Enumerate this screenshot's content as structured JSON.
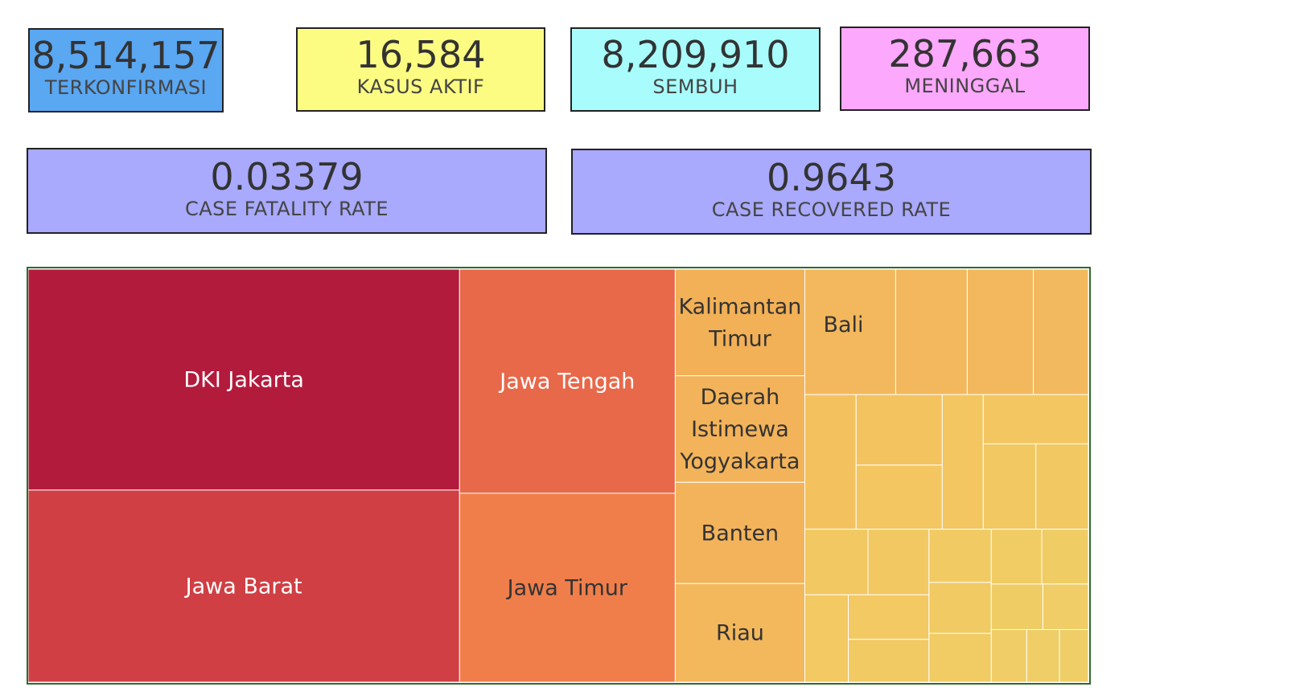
{
  "cards": {
    "terkonfirmasi": {
      "value": "8,514,157",
      "label": "TERKONFIRMASI",
      "color": "#5aa7f2"
    },
    "kasus_aktif": {
      "value": "16,584",
      "label": "KASUS AKTIF",
      "color": "#fcfc82"
    },
    "sembuh": {
      "value": "8,209,910",
      "label": "SEMBUH",
      "color": "#a8fcfc"
    },
    "meninggal": {
      "value": "287,663",
      "label": "MENINGGAL",
      "color": "#fca8fc"
    }
  },
  "rates": {
    "cfr": {
      "value": "0.03379",
      "label": "CASE FATALITY RATE",
      "color": "#a9a9fd"
    },
    "crr": {
      "value": "0.9643",
      "label": "CASE RECOVERED RATE",
      "color": "#a9a9fd"
    }
  },
  "chart_data": {
    "type": "treemap",
    "color_scale": "sequential yellow-orange-red",
    "nodes": [
      {
        "name": "DKI Jakarta",
        "value": 1380,
        "color": "#b31b3c"
      },
      {
        "name": "Jawa Barat",
        "value": 1200,
        "color": "#cf3f43"
      },
      {
        "name": "Jawa Tengah",
        "value": 700,
        "color": "#e8684a"
      },
      {
        "name": "Jawa Timur",
        "value": 590,
        "color": "#ef7e4b"
      },
      {
        "name": "Kalimantan Timur",
        "value": 200,
        "color": "#f2b057"
      },
      {
        "name": "Daerah Istimewa Yogyakarta",
        "value": 200,
        "color": "#f3b35a"
      },
      {
        "name": "Banten",
        "value": 190,
        "color": "#f3b35a"
      },
      {
        "name": "Riau",
        "value": 185,
        "color": "#f3b75c"
      },
      {
        "name": "Bali",
        "value": 165,
        "color": "#f3b85d"
      },
      {
        "name": "",
        "value": 130,
        "color": "#f3b85d"
      },
      {
        "name": "",
        "value": 120,
        "color": "#f3b85d"
      },
      {
        "name": "",
        "value": 100,
        "color": "#f3b95e"
      },
      {
        "name": "",
        "value": 100,
        "color": "#f3c25f"
      },
      {
        "name": "",
        "value": 88,
        "color": "#f3c360"
      },
      {
        "name": "",
        "value": 80,
        "color": "#f3c661"
      },
      {
        "name": "",
        "value": 80,
        "color": "#f3c661"
      },
      {
        "name": "",
        "value": 75,
        "color": "#f3c661"
      },
      {
        "name": "",
        "value": 65,
        "color": "#f2c862"
      },
      {
        "name": "",
        "value": 65,
        "color": "#f2c862"
      },
      {
        "name": "",
        "value": 60,
        "color": "#f2c862"
      },
      {
        "name": "",
        "value": 58,
        "color": "#f2c862"
      },
      {
        "name": "",
        "value": 55,
        "color": "#f2c963"
      },
      {
        "name": "",
        "value": 52,
        "color": "#f2c963"
      },
      {
        "name": "",
        "value": 50,
        "color": "#f1ca63"
      },
      {
        "name": "",
        "value": 48,
        "color": "#f1ca63"
      },
      {
        "name": "",
        "value": 46,
        "color": "#f1ca63"
      },
      {
        "name": "",
        "value": 44,
        "color": "#f1cb64"
      },
      {
        "name": "",
        "value": 40,
        "color": "#f1cb64"
      },
      {
        "name": "",
        "value": 37,
        "color": "#f0cc65"
      },
      {
        "name": "",
        "value": 34,
        "color": "#f0cc65"
      },
      {
        "name": "",
        "value": 30,
        "color": "#f0cd66"
      },
      {
        "name": "",
        "value": 27,
        "color": "#f0cd66"
      },
      {
        "name": "",
        "value": 25,
        "color": "#efce67"
      },
      {
        "name": "",
        "value": 22,
        "color": "#efce67"
      }
    ]
  }
}
